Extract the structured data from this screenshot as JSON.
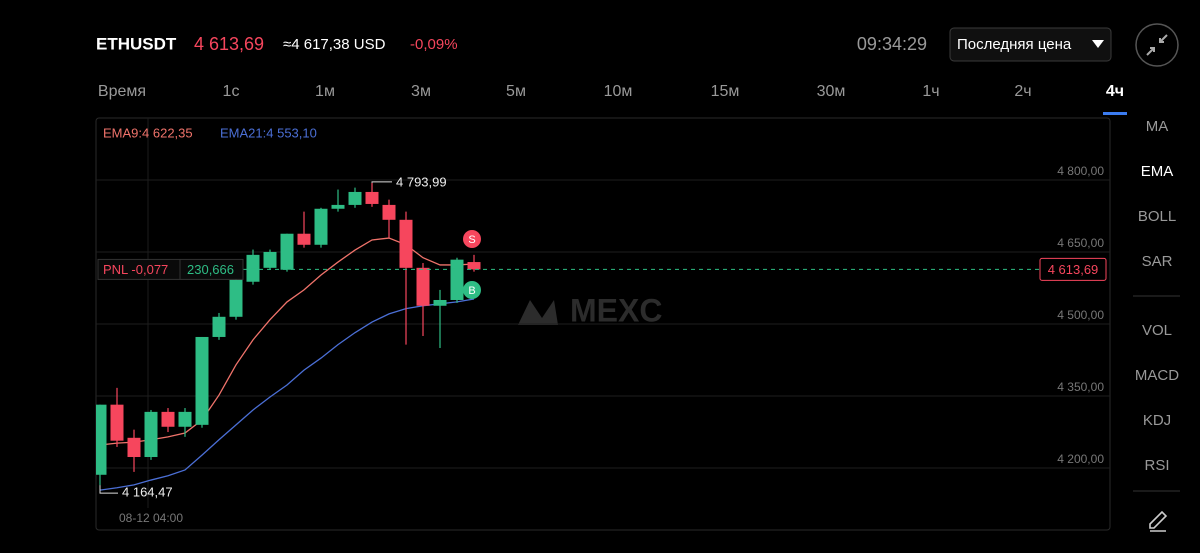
{
  "header": {
    "symbol": "ETHUSDT",
    "price": "4 613,69",
    "approx": "≈4 617,38 USD",
    "change": "-0,09%",
    "time": "09:34:29",
    "price_type": "Последняя цена"
  },
  "timeframes": [
    "Время",
    "1с",
    "1м",
    "3м",
    "5м",
    "10м",
    "15м",
    "30м",
    "1ч",
    "2ч",
    "4ч"
  ],
  "active_timeframe_index": 10,
  "indicators": {
    "main": [
      "MA",
      "EMA",
      "BOLL",
      "SAR"
    ],
    "sub": [
      "VOL",
      "MACD",
      "KDJ",
      "RSI"
    ],
    "active_main_index": 1
  },
  "chart_data": {
    "type": "candlestick",
    "categories": [
      null,
      null,
      null,
      "08-12 04:00",
      null,
      null,
      null,
      null,
      null,
      null,
      null,
      null,
      null,
      null,
      null,
      null,
      null,
      null,
      null,
      null,
      null,
      null,
      null
    ],
    "open": [
      4186,
      4332,
      4263,
      4223,
      4317,
      4286,
      4290,
      4473,
      4515,
      4588,
      4617,
      4613,
      4688,
      4665,
      4740,
      4748,
      4775,
      4748,
      4717,
      4617,
      4538,
      4550,
      4629
    ],
    "high": [
      4332,
      4367,
      4280,
      4321,
      4325,
      4325,
      4473,
      4523,
      4602,
      4655,
      4655,
      4688,
      4734,
      4742,
      4780,
      4784,
      4793.99,
      4759,
      4734,
      4627,
      4571,
      4638,
      4644
    ],
    "low": [
      4164.47,
      4244,
      4192,
      4217,
      4275,
      4265,
      4284,
      4467,
      4509,
      4582,
      4613,
      4609,
      4659,
      4659,
      4734,
      4742,
      4744,
      4680,
      4457,
      4475,
      4450,
      4544,
      4609
    ],
    "close": [
      4332,
      4257,
      4223,
      4317,
      4286,
      4317,
      4473,
      4515,
      4592,
      4644,
      4650,
      4688,
      4665,
      4740,
      4748,
      4775,
      4750,
      4717,
      4617,
      4538,
      4550,
      4634,
      4613.69
    ],
    "up_color": "#2ebd85",
    "down_color": "#f6465d",
    "series": [
      {
        "name": "EMA9:4 622,35",
        "color": "#f0736b",
        "values": [
          4248,
          4252,
          4254,
          4259,
          4265,
          4273,
          4300,
          4352,
          4415,
          4467,
          4509,
          4546,
          4571,
          4602,
          4629,
          4654,
          4675,
          4679,
          4665,
          4638,
          4623,
          4623,
          4625
        ]
      },
      {
        "name": "EMA21:4 553,10",
        "color": "#4b6fd6",
        "values": [
          4154,
          4159,
          4165,
          4175,
          4184,
          4196,
          4227,
          4259,
          4290,
          4321,
          4348,
          4373,
          4404,
          4429,
          4457,
          4482,
          4504,
          4521,
          4532,
          4538,
          4542,
          4546,
          4552
        ]
      }
    ],
    "ylim": [
      4071,
      4929
    ],
    "yticks": [
      {
        "value": 4800,
        "label": "4 800,00"
      },
      {
        "value": 4650,
        "label": "4 650,00"
      },
      {
        "value": 4500,
        "label": "4 500,00"
      },
      {
        "value": 4350,
        "label": "4 350,00"
      },
      {
        "value": 4200,
        "label": "4 200,00"
      }
    ],
    "grid": true,
    "max_annotation": {
      "value": 4793.99,
      "label": "4 793,99"
    },
    "min_annotation": {
      "value": 4164.47,
      "label": "4 164,47"
    },
    "price_line": {
      "value": 4613.69,
      "label": "4 613,69"
    },
    "pnl": {
      "label": "PNL -0,077",
      "amount": "230,666"
    },
    "markers": [
      "S",
      "B"
    ],
    "watermark": "MEXC"
  }
}
